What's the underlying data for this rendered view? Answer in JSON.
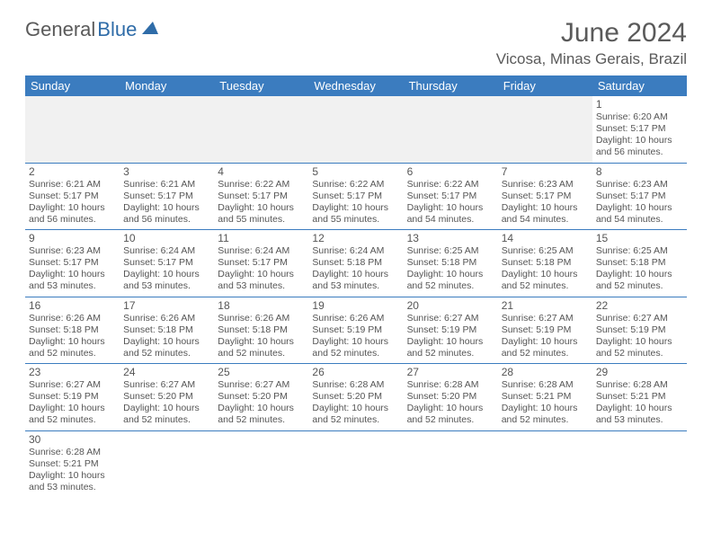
{
  "logo": {
    "part1": "General",
    "part2": "Blue"
  },
  "title": "June 2024",
  "location": "Vicosa, Minas Gerais, Brazil",
  "colors": {
    "header_bg": "#3b7cbf",
    "header_text": "#ffffff",
    "text": "#555555",
    "border": "#3b7cbf",
    "alt_bg": "#f1f1f1",
    "logo_gray": "#5a5a5a",
    "logo_blue": "#2f6ca8"
  },
  "day_names": [
    "Sunday",
    "Monday",
    "Tuesday",
    "Wednesday",
    "Thursday",
    "Friday",
    "Saturday"
  ],
  "weeks": [
    [
      null,
      null,
      null,
      null,
      null,
      null,
      {
        "n": "1",
        "sr": "6:20 AM",
        "ss": "5:17 PM",
        "dl": "10 hours and 56 minutes."
      }
    ],
    [
      {
        "n": "2",
        "sr": "6:21 AM",
        "ss": "5:17 PM",
        "dl": "10 hours and 56 minutes."
      },
      {
        "n": "3",
        "sr": "6:21 AM",
        "ss": "5:17 PM",
        "dl": "10 hours and 56 minutes."
      },
      {
        "n": "4",
        "sr": "6:22 AM",
        "ss": "5:17 PM",
        "dl": "10 hours and 55 minutes."
      },
      {
        "n": "5",
        "sr": "6:22 AM",
        "ss": "5:17 PM",
        "dl": "10 hours and 55 minutes."
      },
      {
        "n": "6",
        "sr": "6:22 AM",
        "ss": "5:17 PM",
        "dl": "10 hours and 54 minutes."
      },
      {
        "n": "7",
        "sr": "6:23 AM",
        "ss": "5:17 PM",
        "dl": "10 hours and 54 minutes."
      },
      {
        "n": "8",
        "sr": "6:23 AM",
        "ss": "5:17 PM",
        "dl": "10 hours and 54 minutes."
      }
    ],
    [
      {
        "n": "9",
        "sr": "6:23 AM",
        "ss": "5:17 PM",
        "dl": "10 hours and 53 minutes."
      },
      {
        "n": "10",
        "sr": "6:24 AM",
        "ss": "5:17 PM",
        "dl": "10 hours and 53 minutes."
      },
      {
        "n": "11",
        "sr": "6:24 AM",
        "ss": "5:17 PM",
        "dl": "10 hours and 53 minutes."
      },
      {
        "n": "12",
        "sr": "6:24 AM",
        "ss": "5:18 PM",
        "dl": "10 hours and 53 minutes."
      },
      {
        "n": "13",
        "sr": "6:25 AM",
        "ss": "5:18 PM",
        "dl": "10 hours and 52 minutes."
      },
      {
        "n": "14",
        "sr": "6:25 AM",
        "ss": "5:18 PM",
        "dl": "10 hours and 52 minutes."
      },
      {
        "n": "15",
        "sr": "6:25 AM",
        "ss": "5:18 PM",
        "dl": "10 hours and 52 minutes."
      }
    ],
    [
      {
        "n": "16",
        "sr": "6:26 AM",
        "ss": "5:18 PM",
        "dl": "10 hours and 52 minutes."
      },
      {
        "n": "17",
        "sr": "6:26 AM",
        "ss": "5:18 PM",
        "dl": "10 hours and 52 minutes."
      },
      {
        "n": "18",
        "sr": "6:26 AM",
        "ss": "5:18 PM",
        "dl": "10 hours and 52 minutes."
      },
      {
        "n": "19",
        "sr": "6:26 AM",
        "ss": "5:19 PM",
        "dl": "10 hours and 52 minutes."
      },
      {
        "n": "20",
        "sr": "6:27 AM",
        "ss": "5:19 PM",
        "dl": "10 hours and 52 minutes."
      },
      {
        "n": "21",
        "sr": "6:27 AM",
        "ss": "5:19 PM",
        "dl": "10 hours and 52 minutes."
      },
      {
        "n": "22",
        "sr": "6:27 AM",
        "ss": "5:19 PM",
        "dl": "10 hours and 52 minutes."
      }
    ],
    [
      {
        "n": "23",
        "sr": "6:27 AM",
        "ss": "5:19 PM",
        "dl": "10 hours and 52 minutes."
      },
      {
        "n": "24",
        "sr": "6:27 AM",
        "ss": "5:20 PM",
        "dl": "10 hours and 52 minutes."
      },
      {
        "n": "25",
        "sr": "6:27 AM",
        "ss": "5:20 PM",
        "dl": "10 hours and 52 minutes."
      },
      {
        "n": "26",
        "sr": "6:28 AM",
        "ss": "5:20 PM",
        "dl": "10 hours and 52 minutes."
      },
      {
        "n": "27",
        "sr": "6:28 AM",
        "ss": "5:20 PM",
        "dl": "10 hours and 52 minutes."
      },
      {
        "n": "28",
        "sr": "6:28 AM",
        "ss": "5:21 PM",
        "dl": "10 hours and 52 minutes."
      },
      {
        "n": "29",
        "sr": "6:28 AM",
        "ss": "5:21 PM",
        "dl": "10 hours and 53 minutes."
      }
    ],
    [
      {
        "n": "30",
        "sr": "6:28 AM",
        "ss": "5:21 PM",
        "dl": "10 hours and 53 minutes."
      },
      null,
      null,
      null,
      null,
      null,
      null
    ]
  ],
  "labels": {
    "sunrise": "Sunrise:",
    "sunset": "Sunset:",
    "daylight": "Daylight:"
  }
}
